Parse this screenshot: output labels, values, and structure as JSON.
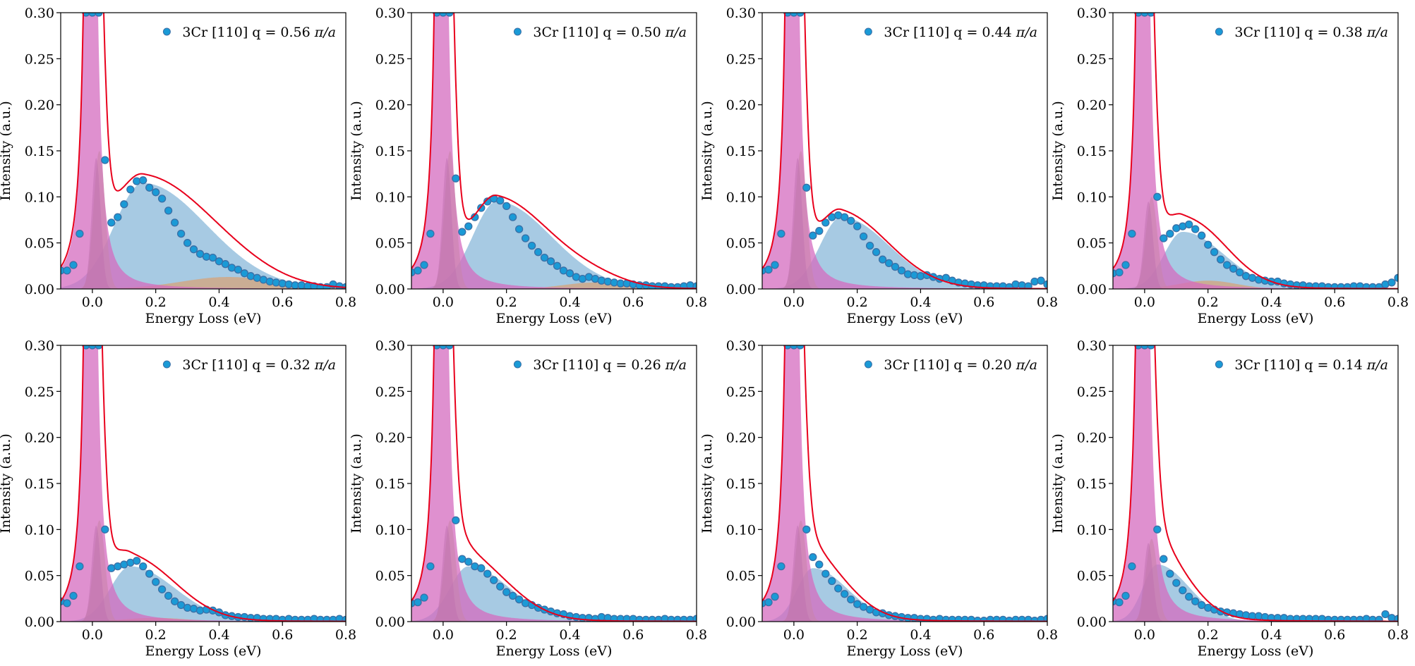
{
  "figure": {
    "colors": {
      "data": "#1a9ad6",
      "data_edge": "#3a6fa6",
      "fit": "#e8001c",
      "elastic": "#d46bbf",
      "phonon": "#a8c870",
      "mode_gray": "#7f7f7f",
      "plasmon": "#7eb1d6",
      "shoulder": "#d6a37a"
    }
  },
  "chart_data": [
    {
      "type": "scatter",
      "legend": "3Cr [110] q = 0.56",
      "legend_unit": "π/a",
      "xlabel": "Energy Loss (eV)",
      "ylabel": "Intensity (a.u.)",
      "xlim": [
        -0.1,
        0.8
      ],
      "ylim": [
        0,
        0.3
      ],
      "xticks": [
        "0.0",
        "0.2",
        "0.4",
        "0.6",
        "0.8"
      ],
      "yticks": [
        "0.00",
        "0.05",
        "0.10",
        "0.15",
        "0.20",
        "0.25",
        "0.30"
      ],
      "components": {
        "plasmon": {
          "center": 0.16,
          "amp": 0.115,
          "width": 0.2
        },
        "shoulder": {
          "center": 0.43,
          "amp": 0.013,
          "width": 0.15
        },
        "phonon_amp": 0.15
      },
      "x": [
        -0.1,
        -0.08,
        -0.06,
        -0.04,
        -0.02,
        0.0,
        0.02,
        0.04,
        0.06,
        0.08,
        0.1,
        0.12,
        0.14,
        0.16,
        0.18,
        0.2,
        0.22,
        0.24,
        0.26,
        0.28,
        0.3,
        0.32,
        0.34,
        0.36,
        0.38,
        0.4,
        0.42,
        0.44,
        0.46,
        0.48,
        0.5,
        0.52,
        0.54,
        0.56,
        0.58,
        0.6,
        0.62,
        0.64,
        0.66,
        0.68,
        0.7,
        0.72,
        0.74,
        0.76,
        0.78,
        0.8
      ],
      "y": [
        0.02,
        0.02,
        0.026,
        0.06,
        0.3,
        0.3,
        0.3,
        0.14,
        0.072,
        0.078,
        0.092,
        0.108,
        0.117,
        0.118,
        0.11,
        0.105,
        0.098,
        0.085,
        0.072,
        0.06,
        0.05,
        0.043,
        0.038,
        0.035,
        0.034,
        0.03,
        0.027,
        0.023,
        0.021,
        0.017,
        0.014,
        0.012,
        0.01,
        0.008,
        0.007,
        0.006,
        0.005,
        0.004,
        0.004,
        0.003,
        0.003,
        0.002,
        0.002,
        0.005,
        0.003,
        0.002
      ]
    },
    {
      "type": "scatter",
      "legend": "3Cr [110] q = 0.50",
      "legend_unit": "π/a",
      "xlabel": "Energy Loss (eV)",
      "ylabel": "Intensity (a.u.)",
      "xlim": [
        -0.1,
        0.8
      ],
      "ylim": [
        0,
        0.3
      ],
      "xticks": [
        "0.0",
        "0.2",
        "0.4",
        "0.6",
        "0.8"
      ],
      "yticks": [
        "0.00",
        "0.05",
        "0.10",
        "0.15",
        "0.20",
        "0.25",
        "0.30"
      ],
      "components": {
        "plasmon": {
          "center": 0.17,
          "amp": 0.095,
          "width": 0.17
        },
        "shoulder": {
          "center": 0.48,
          "amp": 0.007,
          "width": 0.1
        },
        "phonon_amp": 0.15
      },
      "x": [
        -0.1,
        -0.08,
        -0.06,
        -0.04,
        -0.02,
        0.0,
        0.02,
        0.04,
        0.06,
        0.08,
        0.1,
        0.12,
        0.14,
        0.16,
        0.18,
        0.2,
        0.22,
        0.24,
        0.26,
        0.28,
        0.3,
        0.32,
        0.34,
        0.36,
        0.38,
        0.4,
        0.42,
        0.44,
        0.46,
        0.48,
        0.5,
        0.52,
        0.54,
        0.56,
        0.58,
        0.6,
        0.62,
        0.64,
        0.66,
        0.68,
        0.7,
        0.72,
        0.74,
        0.76,
        0.78,
        0.8
      ],
      "y": [
        0.018,
        0.02,
        0.026,
        0.06,
        0.3,
        0.3,
        0.3,
        0.12,
        0.062,
        0.068,
        0.078,
        0.088,
        0.095,
        0.098,
        0.096,
        0.09,
        0.078,
        0.065,
        0.055,
        0.047,
        0.04,
        0.034,
        0.03,
        0.025,
        0.02,
        0.017,
        0.013,
        0.011,
        0.013,
        0.011,
        0.009,
        0.008,
        0.007,
        0.006,
        0.006,
        0.005,
        0.004,
        0.004,
        0.003,
        0.003,
        0.003,
        0.002,
        0.002,
        0.003,
        0.004,
        0.003
      ]
    },
    {
      "type": "scatter",
      "legend": "3Cr [110] q = 0.44",
      "legend_unit": "π/a",
      "xlabel": "Energy Loss (eV)",
      "ylabel": "Intensity (a.u.)",
      "xlim": [
        -0.1,
        0.8
      ],
      "ylim": [
        0,
        0.3
      ],
      "xticks": [
        "0.0",
        "0.2",
        "0.4",
        "0.6",
        "0.8"
      ],
      "yticks": [
        "0.00",
        "0.05",
        "0.10",
        "0.15",
        "0.20",
        "0.25",
        "0.30"
      ],
      "components": {
        "plasmon": {
          "center": 0.15,
          "amp": 0.078,
          "width": 0.15
        },
        "shoulder": null,
        "phonon_amp": 0.15
      },
      "x": [
        -0.1,
        -0.08,
        -0.06,
        -0.04,
        -0.02,
        0.0,
        0.02,
        0.04,
        0.06,
        0.08,
        0.1,
        0.12,
        0.14,
        0.16,
        0.18,
        0.2,
        0.22,
        0.24,
        0.26,
        0.28,
        0.3,
        0.32,
        0.34,
        0.36,
        0.38,
        0.4,
        0.42,
        0.44,
        0.46,
        0.48,
        0.5,
        0.52,
        0.54,
        0.56,
        0.58,
        0.6,
        0.62,
        0.64,
        0.66,
        0.68,
        0.7,
        0.72,
        0.74,
        0.76,
        0.78,
        0.8
      ],
      "y": [
        0.02,
        0.021,
        0.026,
        0.06,
        0.3,
        0.3,
        0.3,
        0.11,
        0.058,
        0.063,
        0.072,
        0.078,
        0.08,
        0.078,
        0.074,
        0.068,
        0.057,
        0.047,
        0.04,
        0.032,
        0.028,
        0.024,
        0.02,
        0.016,
        0.015,
        0.014,
        0.015,
        0.013,
        0.011,
        0.012,
        0.009,
        0.007,
        0.006,
        0.005,
        0.004,
        0.004,
        0.003,
        0.003,
        0.003,
        0.002,
        0.005,
        0.004,
        0.003,
        0.008,
        0.009,
        0.005
      ]
    },
    {
      "type": "scatter",
      "legend": "3Cr [110] q = 0.38",
      "legend_unit": "π/a",
      "xlabel": "Energy Loss (eV)",
      "ylabel": "Intensity (a.u.)",
      "xlim": [
        -0.1,
        0.8
      ],
      "ylim": [
        0,
        0.3
      ],
      "xticks": [
        "0.0",
        "0.2",
        "0.4",
        "0.6",
        "0.8"
      ],
      "yticks": [
        "0.00",
        "0.05",
        "0.10",
        "0.15",
        "0.20",
        "0.25",
        "0.30"
      ],
      "components": {
        "plasmon": {
          "center": 0.12,
          "amp": 0.062,
          "width": 0.13
        },
        "shoulder": {
          "center": 0.2,
          "amp": 0.009,
          "width": 0.09
        },
        "phonon_amp": 0.1
      },
      "x": [
        -0.1,
        -0.08,
        -0.06,
        -0.04,
        -0.02,
        0.0,
        0.02,
        0.04,
        0.06,
        0.08,
        0.1,
        0.12,
        0.14,
        0.16,
        0.18,
        0.2,
        0.22,
        0.24,
        0.26,
        0.28,
        0.3,
        0.32,
        0.34,
        0.36,
        0.38,
        0.4,
        0.42,
        0.44,
        0.46,
        0.48,
        0.5,
        0.52,
        0.54,
        0.56,
        0.58,
        0.6,
        0.62,
        0.64,
        0.66,
        0.68,
        0.7,
        0.72,
        0.74,
        0.76,
        0.78,
        0.8
      ],
      "y": [
        0.017,
        0.018,
        0.026,
        0.06,
        0.3,
        0.3,
        0.3,
        0.1,
        0.055,
        0.06,
        0.066,
        0.068,
        0.07,
        0.065,
        0.058,
        0.048,
        0.04,
        0.032,
        0.026,
        0.022,
        0.018,
        0.014,
        0.012,
        0.01,
        0.009,
        0.008,
        0.008,
        0.006,
        0.005,
        0.004,
        0.004,
        0.003,
        0.003,
        0.003,
        0.002,
        0.002,
        0.002,
        0.002,
        0.003,
        0.003,
        0.002,
        0.002,
        0.002,
        0.005,
        0.007,
        0.012
      ]
    },
    {
      "type": "scatter",
      "legend": "3Cr [110] q = 0.32",
      "legend_unit": "π/a",
      "xlabel": "Energy Loss (eV)",
      "ylabel": "Intensity (a.u.)",
      "xlim": [
        -0.1,
        0.8
      ],
      "ylim": [
        0,
        0.3
      ],
      "xticks": [
        "0.0",
        "0.2",
        "0.4",
        "0.6",
        "0.8"
      ],
      "yticks": [
        "0.00",
        "0.05",
        "0.10",
        "0.15",
        "0.20",
        "0.25",
        "0.30"
      ],
      "components": {
        "plasmon": {
          "center": 0.12,
          "amp": 0.06,
          "width": 0.14
        },
        "shoulder": {
          "center": 0.2,
          "amp": 0.004,
          "width": 0.1
        },
        "phonon_amp": 0.11
      },
      "x": [
        -0.1,
        -0.08,
        -0.06,
        -0.04,
        -0.02,
        0.0,
        0.02,
        0.04,
        0.06,
        0.08,
        0.1,
        0.12,
        0.14,
        0.16,
        0.18,
        0.2,
        0.22,
        0.24,
        0.26,
        0.28,
        0.3,
        0.32,
        0.34,
        0.36,
        0.38,
        0.4,
        0.42,
        0.44,
        0.46,
        0.48,
        0.5,
        0.52,
        0.54,
        0.56,
        0.58,
        0.6,
        0.62,
        0.64,
        0.66,
        0.68,
        0.7,
        0.72,
        0.74,
        0.76,
        0.78,
        0.8
      ],
      "y": [
        0.022,
        0.02,
        0.028,
        0.06,
        0.3,
        0.3,
        0.3,
        0.1,
        0.058,
        0.06,
        0.062,
        0.064,
        0.066,
        0.06,
        0.052,
        0.043,
        0.035,
        0.028,
        0.022,
        0.018,
        0.015,
        0.014,
        0.012,
        0.013,
        0.012,
        0.01,
        0.007,
        0.006,
        0.005,
        0.005,
        0.004,
        0.004,
        0.003,
        0.003,
        0.003,
        0.002,
        0.003,
        0.002,
        0.002,
        0.002,
        0.003,
        0.002,
        0.002,
        0.002,
        0.003,
        0.002
      ]
    },
    {
      "type": "scatter",
      "legend": "3Cr [110] q = 0.26",
      "legend_unit": "π/a",
      "xlabel": "Energy Loss (eV)",
      "ylabel": "Intensity (a.u.)",
      "xlim": [
        -0.1,
        0.8
      ],
      "ylim": [
        0,
        0.3
      ],
      "xticks": [
        "0.0",
        "0.2",
        "0.4",
        "0.6",
        "0.8"
      ],
      "yticks": [
        "0.00",
        "0.05",
        "0.10",
        "0.15",
        "0.20",
        "0.25",
        "0.30"
      ],
      "components": {
        "plasmon": {
          "center": 0.08,
          "amp": 0.06,
          "width": 0.13
        },
        "shoulder": null,
        "phonon_amp": 0.11
      },
      "x": [
        -0.1,
        -0.08,
        -0.06,
        -0.04,
        -0.02,
        0.0,
        0.02,
        0.04,
        0.06,
        0.08,
        0.1,
        0.12,
        0.14,
        0.16,
        0.18,
        0.2,
        0.22,
        0.24,
        0.26,
        0.28,
        0.3,
        0.32,
        0.34,
        0.36,
        0.38,
        0.4,
        0.42,
        0.44,
        0.46,
        0.48,
        0.5,
        0.52,
        0.54,
        0.56,
        0.58,
        0.6,
        0.62,
        0.64,
        0.66,
        0.68,
        0.7,
        0.72,
        0.74,
        0.76,
        0.78,
        0.8
      ],
      "y": [
        0.02,
        0.021,
        0.026,
        0.06,
        0.3,
        0.3,
        0.3,
        0.11,
        0.068,
        0.065,
        0.06,
        0.058,
        0.052,
        0.045,
        0.038,
        0.032,
        0.028,
        0.024,
        0.02,
        0.018,
        0.015,
        0.013,
        0.011,
        0.009,
        0.008,
        0.006,
        0.005,
        0.004,
        0.004,
        0.003,
        0.005,
        0.004,
        0.003,
        0.003,
        0.003,
        0.003,
        0.002,
        0.002,
        0.002,
        0.002,
        0.003,
        0.002,
        0.002,
        0.002,
        0.002,
        0.003
      ]
    },
    {
      "type": "scatter",
      "legend": "3Cr [110] q = 0.20",
      "legend_unit": "π/a",
      "xlabel": "Energy Loss (eV)",
      "ylabel": "Intensity (a.u.)",
      "xlim": [
        -0.1,
        0.8
      ],
      "ylim": [
        0,
        0.3
      ],
      "xticks": [
        "0.0",
        "0.2",
        "0.4",
        "0.6",
        "0.8"
      ],
      "yticks": [
        "0.00",
        "0.05",
        "0.10",
        "0.15",
        "0.20",
        "0.25",
        "0.30"
      ],
      "components": {
        "plasmon": {
          "center": 0.06,
          "amp": 0.058,
          "width": 0.11
        },
        "shoulder": null,
        "phonon_amp": 0.11
      },
      "x": [
        -0.1,
        -0.08,
        -0.06,
        -0.04,
        -0.02,
        0.0,
        0.02,
        0.04,
        0.06,
        0.08,
        0.1,
        0.12,
        0.14,
        0.16,
        0.18,
        0.2,
        0.22,
        0.24,
        0.26,
        0.28,
        0.3,
        0.32,
        0.34,
        0.36,
        0.38,
        0.4,
        0.42,
        0.44,
        0.46,
        0.48,
        0.5,
        0.52,
        0.54,
        0.56,
        0.58,
        0.6,
        0.62,
        0.64,
        0.66,
        0.68,
        0.7,
        0.72,
        0.74,
        0.76,
        0.78,
        0.8
      ],
      "y": [
        0.02,
        0.021,
        0.027,
        0.06,
        0.3,
        0.3,
        0.3,
        0.1,
        0.07,
        0.062,
        0.052,
        0.044,
        0.036,
        0.03,
        0.024,
        0.019,
        0.016,
        0.013,
        0.01,
        0.009,
        0.007,
        0.006,
        0.005,
        0.004,
        0.004,
        0.003,
        0.003,
        0.002,
        0.003,
        0.002,
        0.002,
        0.002,
        0.002,
        0.002,
        0.001,
        0.001,
        0.002,
        0.002,
        0.002,
        0.001,
        0.002,
        0.002,
        0.002,
        0.001,
        0.002,
        0.003
      ]
    },
    {
      "type": "scatter",
      "legend": "3Cr [110] q = 0.14",
      "legend_unit": "π/a",
      "xlabel": "Energy Loss (eV)",
      "ylabel": "Intensity (a.u.)",
      "xlim": [
        -0.1,
        0.8
      ],
      "ylim": [
        0,
        0.3
      ],
      "xticks": [
        "0.0",
        "0.2",
        "0.4",
        "0.6",
        "0.8"
      ],
      "yticks": [
        "0.00",
        "0.05",
        "0.10",
        "0.15",
        "0.20",
        "0.25",
        "0.30"
      ],
      "components": {
        "plasmon": {
          "center": 0.04,
          "amp": 0.062,
          "width": 0.1
        },
        "shoulder": null,
        "phonon_amp": 0.09
      },
      "x": [
        -0.1,
        -0.08,
        -0.06,
        -0.04,
        -0.02,
        0.0,
        0.02,
        0.04,
        0.06,
        0.08,
        0.1,
        0.12,
        0.14,
        0.16,
        0.18,
        0.2,
        0.22,
        0.24,
        0.26,
        0.28,
        0.3,
        0.32,
        0.34,
        0.36,
        0.38,
        0.4,
        0.42,
        0.44,
        0.46,
        0.48,
        0.5,
        0.52,
        0.54,
        0.56,
        0.58,
        0.6,
        0.62,
        0.64,
        0.66,
        0.68,
        0.7,
        0.72,
        0.74,
        0.76,
        0.78,
        0.8
      ],
      "y": [
        0.022,
        0.021,
        0.028,
        0.06,
        0.3,
        0.3,
        0.3,
        0.1,
        0.068,
        0.052,
        0.042,
        0.034,
        0.027,
        0.022,
        0.018,
        0.015,
        0.013,
        0.011,
        0.01,
        0.009,
        0.008,
        0.007,
        0.006,
        0.006,
        0.005,
        0.004,
        0.004,
        0.004,
        0.003,
        0.003,
        0.003,
        0.003,
        0.003,
        0.003,
        0.002,
        0.002,
        0.002,
        0.002,
        0.002,
        0.002,
        0.003,
        0.002,
        0.002,
        0.008,
        0.004,
        0.003
      ]
    }
  ]
}
